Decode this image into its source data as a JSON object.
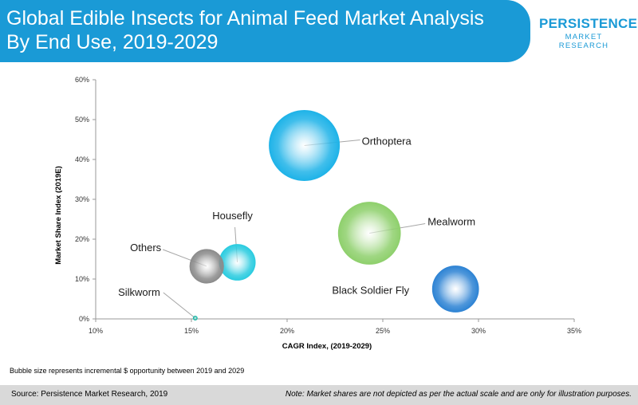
{
  "header": {
    "title_line1": "Global Edible Insects for Animal Feed Market Analysis",
    "title_line2": "By End Use, 2019-2029",
    "logo_main": "PERSISTENCE",
    "logo_sub": "MARKET RESEARCH"
  },
  "colors": {
    "banner": "#1a9ad6",
    "footer": "#d9d9d9"
  },
  "chart_data": {
    "type": "scatter",
    "subtype": "bubble",
    "xlabel": "CAGR Index, (2019-2029)",
    "ylabel": "Market Share Index (2019E)",
    "xlim": [
      10,
      35
    ],
    "ylim": [
      0,
      60
    ],
    "xticks": [
      "10%",
      "15%",
      "20%",
      "25%",
      "30%",
      "35%"
    ],
    "yticks": [
      "0%",
      "10%",
      "20%",
      "30%",
      "40%",
      "50%",
      "60%"
    ],
    "series": [
      {
        "name": "Orthoptera",
        "x": 20.9,
        "y": 43.5,
        "size": 100,
        "color": "#1fb3e8"
      },
      {
        "name": "Mealworm",
        "x": 24.3,
        "y": 21.5,
        "size": 78,
        "color": "#8fd06d"
      },
      {
        "name": "Black Soldier Fly",
        "x": 28.8,
        "y": 7.5,
        "size": 43,
        "color": "#2f84d4"
      },
      {
        "name": "Housefly",
        "x": 17.4,
        "y": 14.2,
        "size": 26,
        "color": "#2ccce0"
      },
      {
        "name": "Others",
        "x": 15.8,
        "y": 13.2,
        "size": 23,
        "color": "#8c8c8c"
      },
      {
        "name": "Silkworm",
        "x": 15.2,
        "y": 0.2,
        "size": 0.1,
        "color": "#20b8a8"
      }
    ]
  },
  "note": "Bubble size represents incremental $ opportunity between 2019 and 2029",
  "footer": {
    "source": "Source: Persistence Market Research, 2019",
    "disclaimer": "Note: Market shares are not depicted as per the actual scale and are only for illustration purposes."
  }
}
